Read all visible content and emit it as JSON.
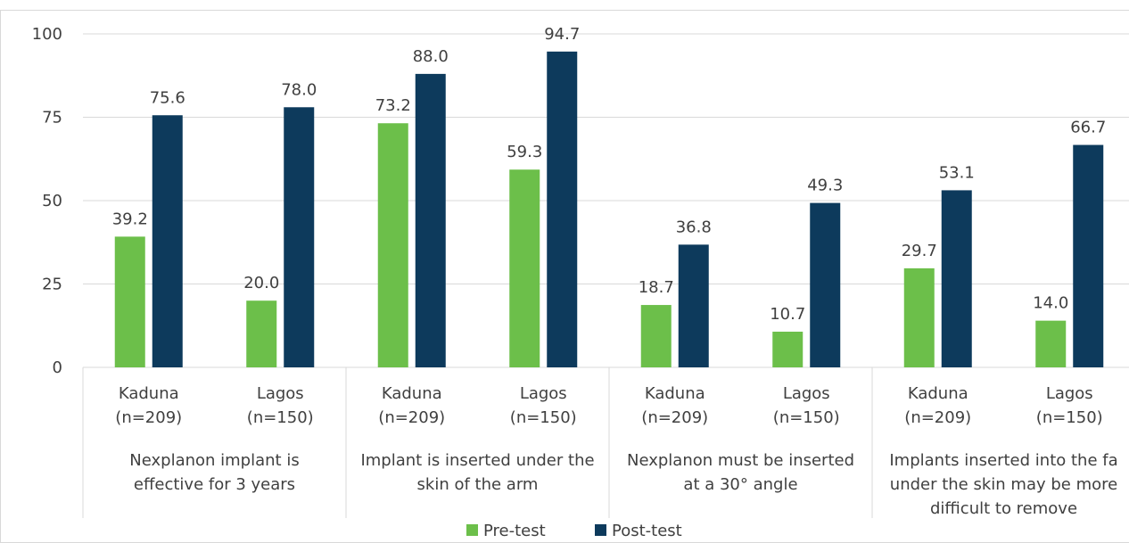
{
  "chart_data": {
    "type": "bar",
    "ylim": [
      0,
      100
    ],
    "yticks": [
      "0",
      "25",
      "50",
      "75",
      "100"
    ],
    "grid": true,
    "legend_position": "bottom-center",
    "groups": [
      {
        "label_lines": [
          "Nexplanon implant is",
          "effective for 3 years"
        ]
      },
      {
        "label_lines": [
          "Implant is inserted under the",
          "skin of the arm"
        ]
      },
      {
        "label_lines": [
          "Nexplanon must be inserted",
          "at a 30° angle"
        ]
      },
      {
        "label_lines": [
          "Implants inserted into the fa",
          "under the skin may be more",
          "difficult to remove"
        ]
      }
    ],
    "categories": [
      {
        "line1": "Kaduna",
        "line2": "(n=209)"
      },
      {
        "line1": "Lagos",
        "line2": "(n=150)"
      },
      {
        "line1": "Kaduna",
        "line2": "(n=209)"
      },
      {
        "line1": "Lagos",
        "line2": "(n=150)"
      },
      {
        "line1": "Kaduna",
        "line2": "(n=209)"
      },
      {
        "line1": "Lagos",
        "line2": "(n=150)"
      },
      {
        "line1": "Kaduna",
        "line2": "(n=209)"
      },
      {
        "line1": "Lagos",
        "line2": "(n=150)"
      }
    ],
    "series": [
      {
        "name": "Pre-test",
        "color": "#6cbf4a",
        "values": [
          39.2,
          20.0,
          73.2,
          59.3,
          18.7,
          10.7,
          29.7,
          14.0
        ],
        "labels": [
          "39.2",
          "20.0",
          "73.2",
          "59.3",
          "18.7",
          "10.7",
          "29.7",
          "14.0"
        ]
      },
      {
        "name": "Post-test",
        "color": "#0d3a5c",
        "values": [
          75.6,
          78.0,
          88.0,
          94.7,
          36.8,
          49.3,
          53.1,
          66.7
        ],
        "labels": [
          "75.6",
          "78.0",
          "88.0",
          "94.7",
          "36.8",
          "49.3",
          "53.1",
          "66.7"
        ]
      }
    ]
  }
}
